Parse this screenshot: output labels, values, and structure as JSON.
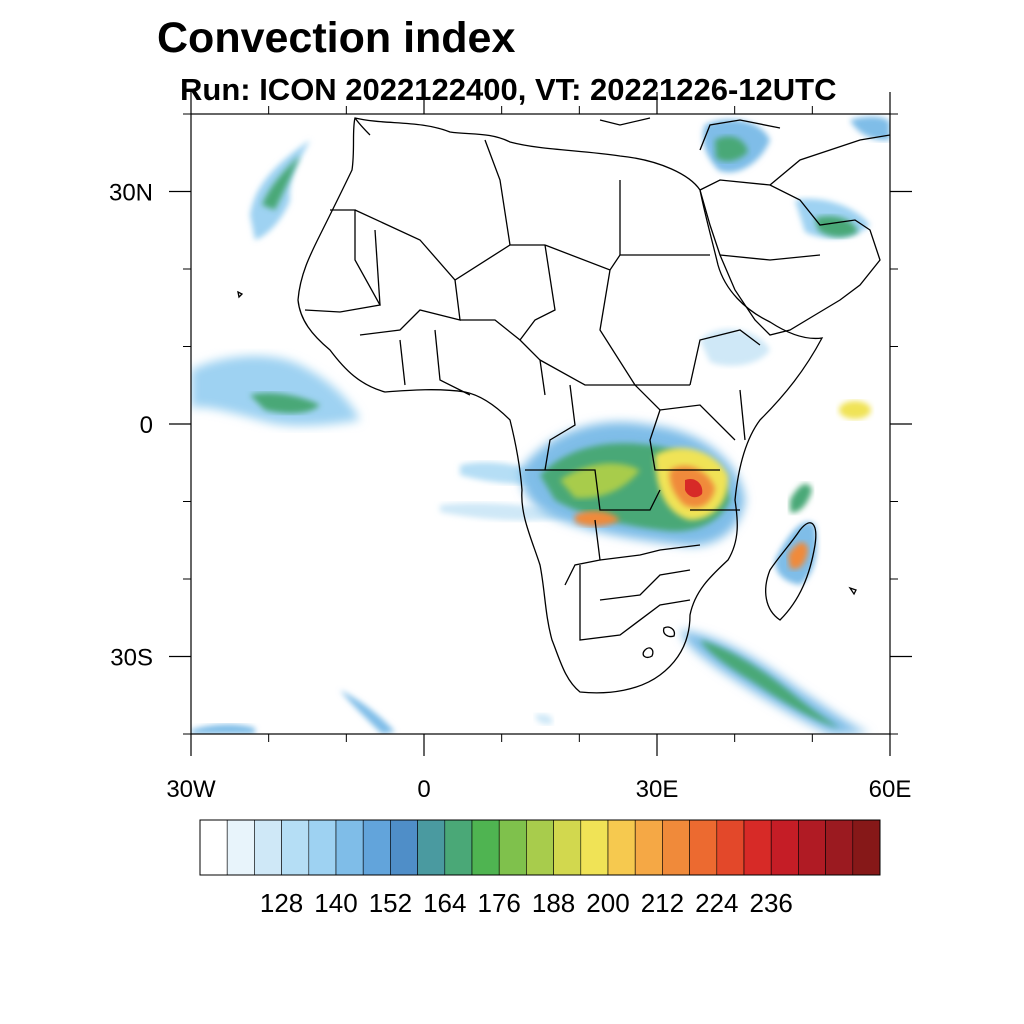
{
  "title": "Convection index",
  "subtitle": "Run: ICON 2022122400,  VT: 20221226-12UTC",
  "map": {
    "lon_range": [
      -30,
      60
    ],
    "lat_range": [
      -40,
      40
    ],
    "x_ticks": [
      {
        "value": -30,
        "label": "30W"
      },
      {
        "value": 0,
        "label": "0"
      },
      {
        "value": 30,
        "label": "30E"
      },
      {
        "value": 60,
        "label": "60E"
      }
    ],
    "y_ticks": [
      {
        "value": 30,
        "label": "30N"
      },
      {
        "value": 0,
        "label": "0"
      },
      {
        "value": -30,
        "label": "30S"
      }
    ]
  },
  "colorbar": {
    "colors": [
      "#ffffff",
      "#e8f4fb",
      "#cfe8f7",
      "#b5def5",
      "#9ed2f2",
      "#7fbde8",
      "#62a4db",
      "#4f8ec8",
      "#4a9aa0",
      "#4aa877",
      "#4fb451",
      "#7fc14c",
      "#a8cc4c",
      "#d2d84e",
      "#f0e356",
      "#f6c94f",
      "#f5a845",
      "#f08a3a",
      "#ec6a30",
      "#e3482a",
      "#d72a27",
      "#c51d26",
      "#b01b24",
      "#9b1a20",
      "#861818"
    ],
    "labels": [
      "128",
      "140",
      "152",
      "164",
      "176",
      "188",
      "200",
      "212",
      "224",
      "236"
    ]
  },
  "colors": {
    "coast": "#000000",
    "low": "#9ed2f2",
    "mid": "#4aa877",
    "high": "#f0e356",
    "peak": "#d72a27"
  }
}
